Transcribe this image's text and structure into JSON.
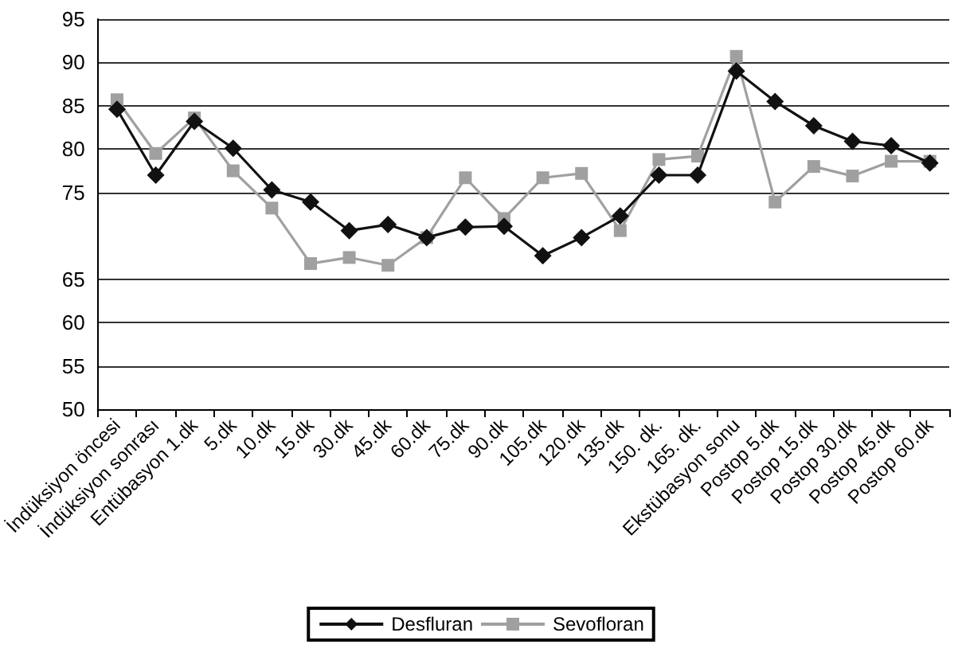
{
  "chart_data": {
    "type": "line",
    "categories": [
      "İndüksiyon öncesi",
      "İndüksiyon sonrası",
      "Entübasyon 1.dk",
      "5.dk",
      "10.dk",
      "15.dk",
      "30.dk",
      "45.dk",
      "60.dk",
      "75.dk",
      "90.dk",
      "105.dk",
      "120.dk",
      "135.dk",
      "150. dk.",
      "165. dk.",
      "Ekstübasyon sonu",
      "Postop 5.dk",
      "Postop 15.dk",
      "Postop 30.dk",
      "Postop 45.dk",
      "Postop 60.dk"
    ],
    "series": [
      {
        "name": "Desfluran",
        "color": "#111111",
        "marker": "diamond",
        "values": [
          84.6,
          77.0,
          83.2,
          80.1,
          75.3,
          73.9,
          70.6,
          71.3,
          69.8,
          71.0,
          71.1,
          67.7,
          69.8,
          72.3,
          77.0,
          77.0,
          89.0,
          85.5,
          82.7,
          80.9,
          80.4,
          78.4
        ]
      },
      {
        "name": "Sevofloran",
        "color": "#a0a0a0",
        "marker": "square",
        "values": [
          85.7,
          79.5,
          83.6,
          77.5,
          73.2,
          66.8,
          67.5,
          66.6,
          69.8,
          76.7,
          72.0,
          76.7,
          77.2,
          70.6,
          78.8,
          79.2,
          90.7,
          73.9,
          78.0,
          76.9,
          78.6,
          78.6
        ]
      }
    ],
    "ylim": [
      50,
      95
    ],
    "yticks": [
      50,
      55,
      60,
      65,
      75,
      80,
      85,
      90,
      95
    ],
    "grid": "y",
    "legend": "bottom",
    "line_style": "solid"
  }
}
